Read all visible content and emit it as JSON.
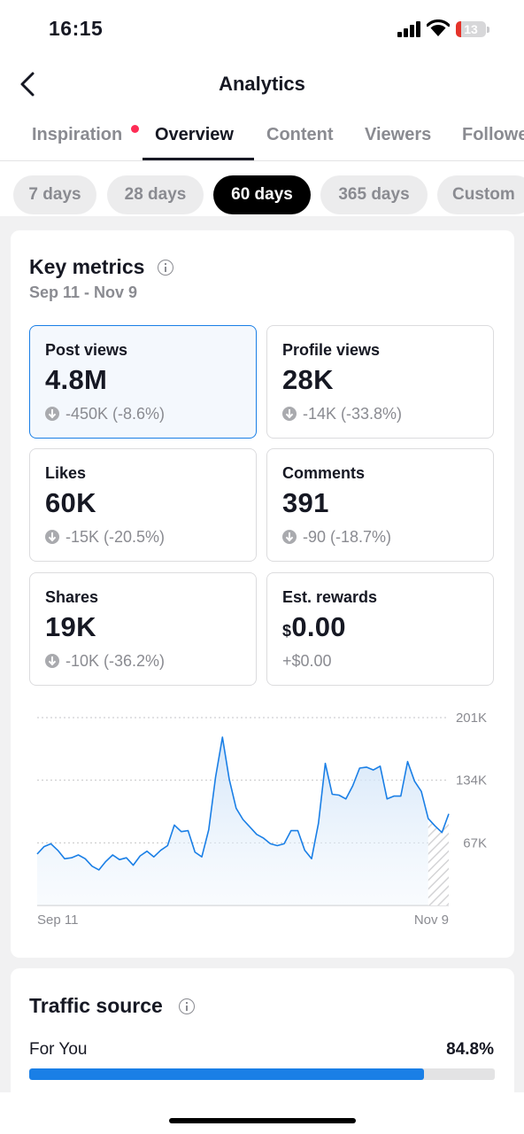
{
  "status_bar": {
    "time": "16:15",
    "battery": "13"
  },
  "header": {
    "title": "Analytics"
  },
  "tabs": [
    {
      "label": "Inspiration",
      "has_dot": true
    },
    {
      "label": "Overview",
      "active": true
    },
    {
      "label": "Content"
    },
    {
      "label": "Viewers"
    },
    {
      "label": "Followers"
    }
  ],
  "ranges": [
    {
      "label": "7 days"
    },
    {
      "label": "28 days"
    },
    {
      "label": "60 days",
      "selected": true
    },
    {
      "label": "365 days"
    },
    {
      "label": "Custom"
    }
  ],
  "key_metrics": {
    "title": "Key metrics",
    "date_range": "Sep 11 - Nov 9",
    "cards": [
      {
        "label": "Post views",
        "value": "4.8M",
        "delta": "-450K (-8.6%)",
        "selected": true
      },
      {
        "label": "Profile views",
        "value": "28K",
        "delta": "-14K (-33.8%)"
      },
      {
        "label": "Likes",
        "value": "60K",
        "delta": "-15K (-20.5%)"
      },
      {
        "label": "Comments",
        "value": "391",
        "delta": "-90 (-18.7%)"
      },
      {
        "label": "Shares",
        "value": "19K",
        "delta": "-10K (-36.2%)"
      },
      {
        "label": "Est. rewards",
        "currency": "$",
        "value": "0.00",
        "delta": "+$0.00"
      }
    ]
  },
  "chart_data": {
    "type": "area",
    "series": [
      {
        "values": [
          55,
          63,
          66,
          59,
          50,
          51,
          54,
          50,
          42,
          38,
          47,
          54,
          49,
          51,
          43,
          53,
          58,
          52,
          59,
          64,
          86,
          79,
          80,
          57,
          52,
          81,
          137,
          180,
          135,
          104,
          92,
          84,
          76,
          72,
          66,
          64,
          66,
          80,
          80,
          59,
          50,
          88,
          152,
          119,
          118,
          114,
          128,
          147,
          148,
          145,
          149,
          114,
          117,
          117,
          154,
          133,
          122,
          93,
          85,
          78,
          98
        ]
      }
    ],
    "x_tick_labels": [
      "Sep 11",
      "Nov 9"
    ],
    "y_tick_labels": [
      "201K",
      "134K",
      "67K"
    ],
    "y_ticks": [
      201,
      134,
      67
    ],
    "ylim": [
      0,
      201
    ],
    "line_color": "#1a7fe6",
    "grid": "dotted horizontal",
    "hatched_last_points": 3
  },
  "traffic_source": {
    "title": "Traffic source",
    "label": "For You",
    "value": "84.8%",
    "fraction": 0.848
  },
  "colors": {
    "accent": "#1a7fe6",
    "notification_dot": "#fe2c55"
  }
}
